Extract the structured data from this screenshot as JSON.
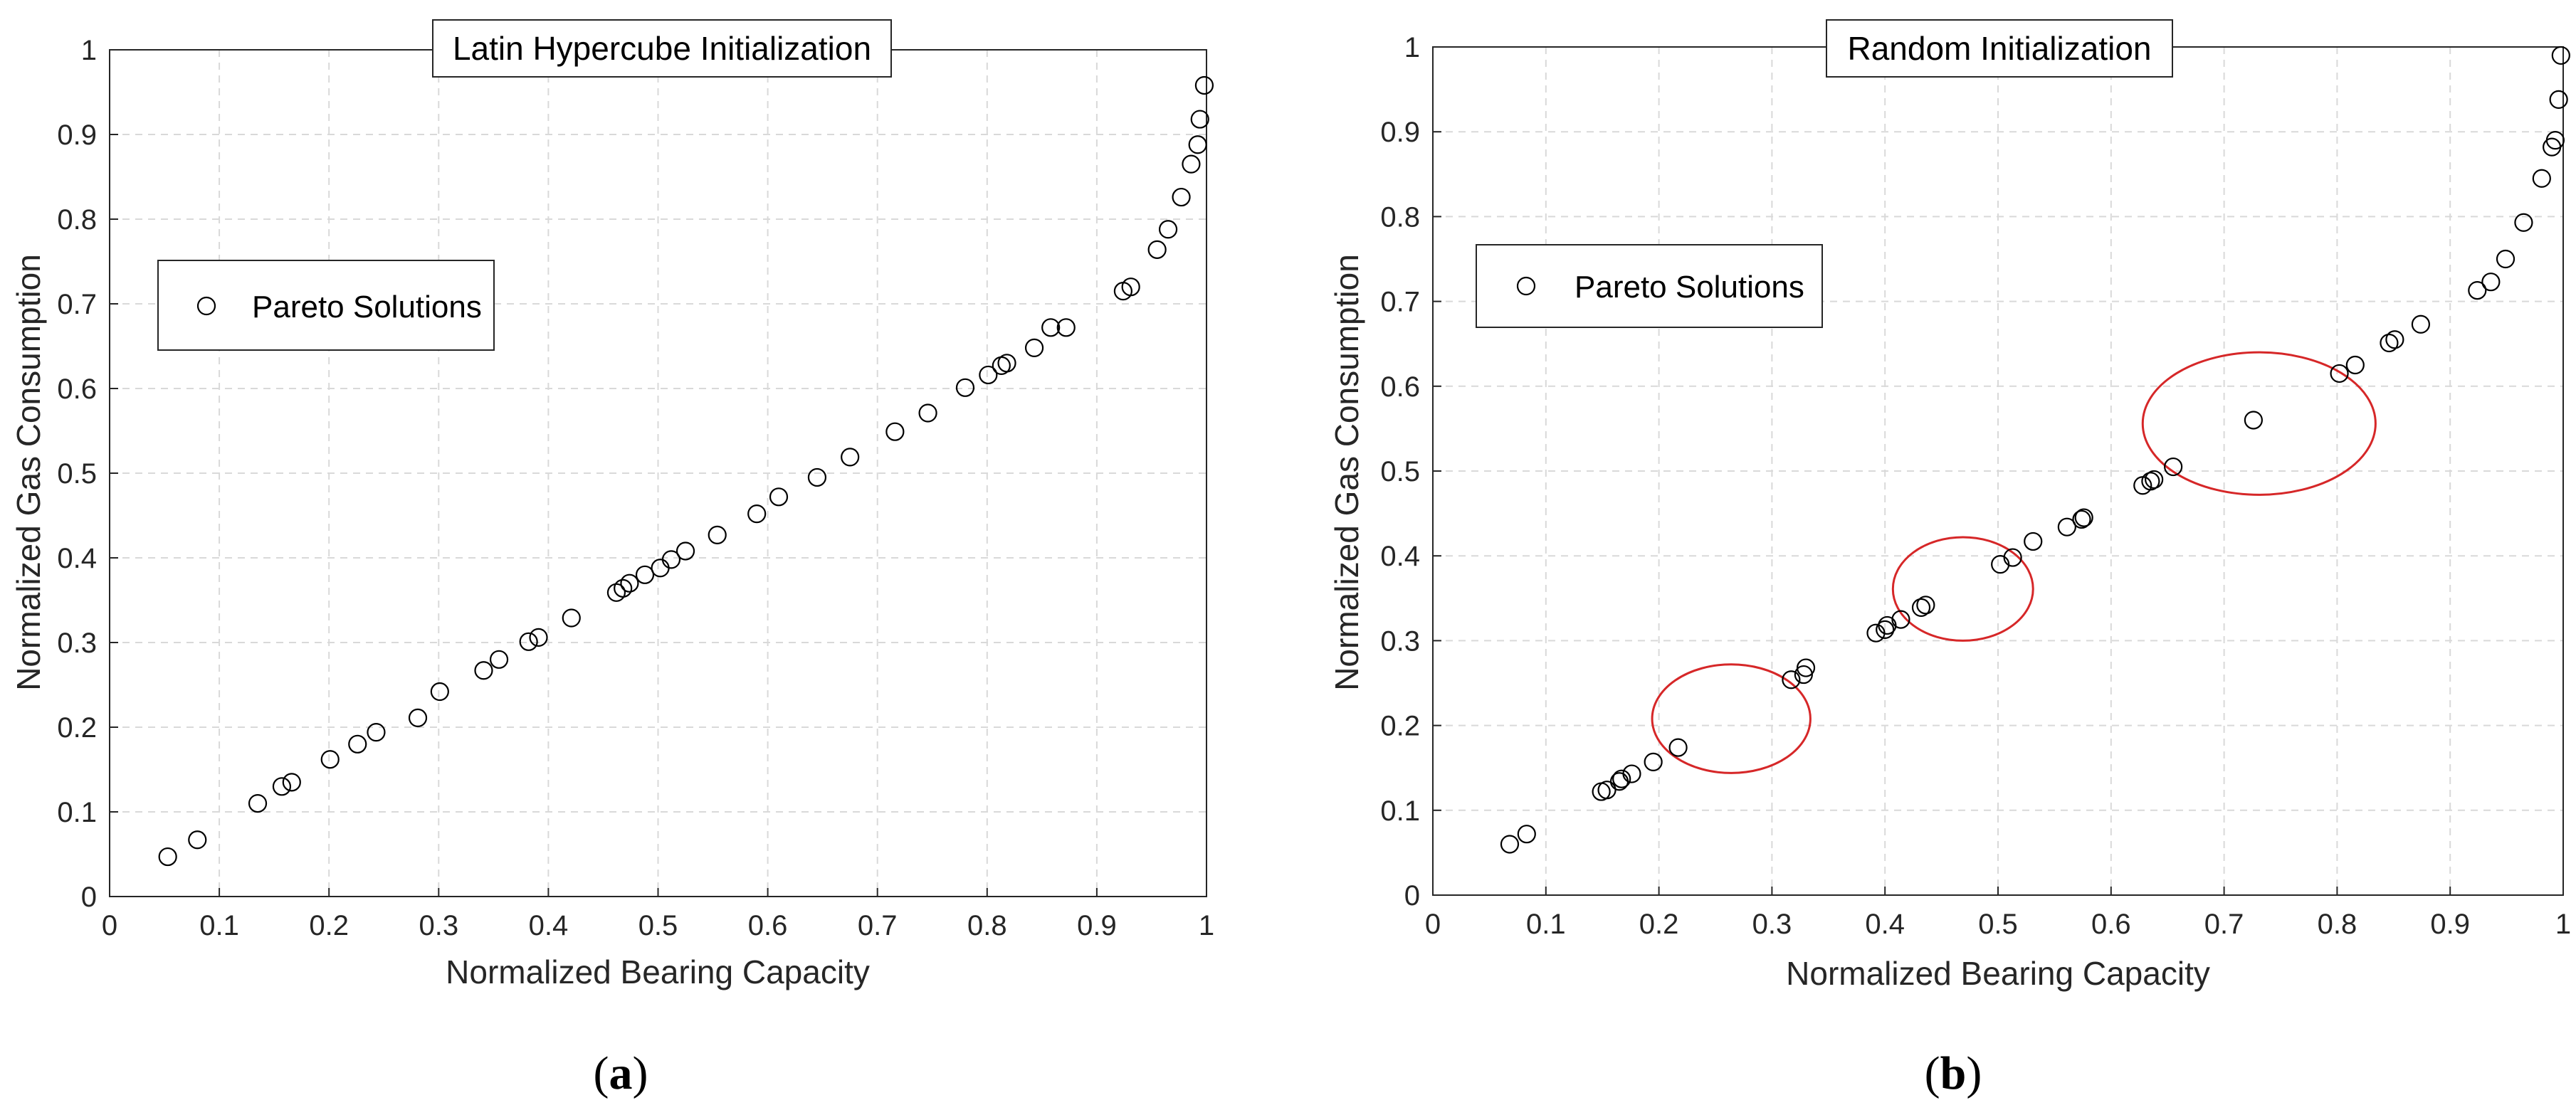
{
  "colors": {
    "marker": "#000000",
    "highlight": "#d62728",
    "grid": "#d9d9d9",
    "axis": "#262626"
  },
  "chart_data": [
    {
      "type": "scatter",
      "panel_label": "a",
      "title": "Latin Hypercube Initialization",
      "xlabel": "Normalized Bearing Capacity",
      "ylabel": "Normalized Gas Consumption",
      "xlim": [
        0,
        1
      ],
      "ylim": [
        0,
        1
      ],
      "xticks": [
        "0",
        "0.1",
        "0.2",
        "0.3",
        "0.4",
        "0.5",
        "0.6",
        "0.7",
        "0.8",
        "0.9",
        "1"
      ],
      "yticks": [
        "0",
        "0.1",
        "0.2",
        "0.3",
        "0.4",
        "0.5",
        "0.6",
        "0.7",
        "0.8",
        "0.9",
        "1"
      ],
      "grid": true,
      "legend": {
        "position": "upper-left",
        "entries": [
          "Pareto Solutions"
        ]
      },
      "series": [
        {
          "name": "Pareto Solutions",
          "marker": "circle",
          "x": [
            0.053,
            0.08,
            0.135,
            0.157,
            0.166,
            0.201,
            0.226,
            0.243,
            0.281,
            0.301,
            0.341,
            0.355,
            0.382,
            0.391,
            0.421,
            0.462,
            0.468,
            0.474,
            0.488,
            0.502,
            0.512,
            0.525,
            0.554,
            0.59,
            0.61,
            0.645,
            0.675,
            0.716,
            0.746,
            0.78,
            0.801,
            0.813,
            0.818,
            0.843,
            0.858,
            0.872,
            0.924,
            0.931,
            0.955,
            0.965,
            0.977,
            0.986,
            0.992,
            0.994,
            0.998
          ],
          "y": [
            0.047,
            0.067,
            0.11,
            0.13,
            0.135,
            0.162,
            0.18,
            0.194,
            0.211,
            0.242,
            0.267,
            0.28,
            0.301,
            0.306,
            0.329,
            0.359,
            0.364,
            0.37,
            0.38,
            0.388,
            0.398,
            0.408,
            0.427,
            0.452,
            0.472,
            0.495,
            0.519,
            0.549,
            0.571,
            0.601,
            0.616,
            0.627,
            0.63,
            0.648,
            0.672,
            0.672,
            0.715,
            0.72,
            0.764,
            0.788,
            0.826,
            0.865,
            0.888,
            0.918,
            0.958
          ]
        }
      ],
      "annotations": []
    },
    {
      "type": "scatter",
      "panel_label": "b",
      "title": "Random Initialization",
      "xlabel": "Normalized Bearing Capacity",
      "ylabel": "Normalized Gas Consumption",
      "xlim": [
        0,
        1
      ],
      "ylim": [
        0,
        1
      ],
      "xticks": [
        "0",
        "0.1",
        "0.2",
        "0.3",
        "0.4",
        "0.5",
        "0.6",
        "0.7",
        "0.8",
        "0.9",
        "1"
      ],
      "yticks": [
        "0",
        "0.1",
        "0.2",
        "0.3",
        "0.4",
        "0.5",
        "0.6",
        "0.7",
        "0.8",
        "0.9",
        "1"
      ],
      "grid": true,
      "legend": {
        "position": "upper-left",
        "entries": [
          "Pareto Solutions"
        ]
      },
      "series": [
        {
          "name": "Pareto Solutions",
          "marker": "circle",
          "x": [
            0.068,
            0.083,
            0.149,
            0.154,
            0.165,
            0.167,
            0.176,
            0.195,
            0.217,
            0.317,
            0.328,
            0.33,
            0.392,
            0.4,
            0.402,
            0.414,
            0.432,
            0.436,
            0.502,
            0.513,
            0.531,
            0.561,
            0.574,
            0.576,
            0.628,
            0.635,
            0.638,
            0.655,
            0.726,
            0.802,
            0.816,
            0.846,
            0.851,
            0.874,
            0.924,
            0.936,
            0.949,
            0.965,
            0.981,
            0.99,
            0.993,
            0.996,
            0.998
          ],
          "y": [
            0.06,
            0.072,
            0.122,
            0.124,
            0.134,
            0.137,
            0.143,
            0.157,
            0.174,
            0.254,
            0.26,
            0.268,
            0.309,
            0.313,
            0.318,
            0.325,
            0.339,
            0.342,
            0.39,
            0.398,
            0.417,
            0.434,
            0.443,
            0.445,
            0.483,
            0.488,
            0.49,
            0.505,
            0.56,
            0.615,
            0.625,
            0.651,
            0.655,
            0.673,
            0.713,
            0.723,
            0.75,
            0.793,
            0.845,
            0.882,
            0.89,
            0.938,
            0.99
          ]
        }
      ],
      "annotations": [
        {
          "type": "ellipse",
          "color": "#d62728",
          "cx": 0.264,
          "cy": 0.208,
          "rx": 0.07,
          "ry": 0.064
        },
        {
          "type": "ellipse",
          "color": "#d62728",
          "cx": 0.469,
          "cy": 0.361,
          "rx": 0.062,
          "ry": 0.061
        },
        {
          "type": "ellipse",
          "color": "#d62728",
          "cx": 0.731,
          "cy": 0.556,
          "rx": 0.103,
          "ry": 0.084
        }
      ]
    }
  ]
}
